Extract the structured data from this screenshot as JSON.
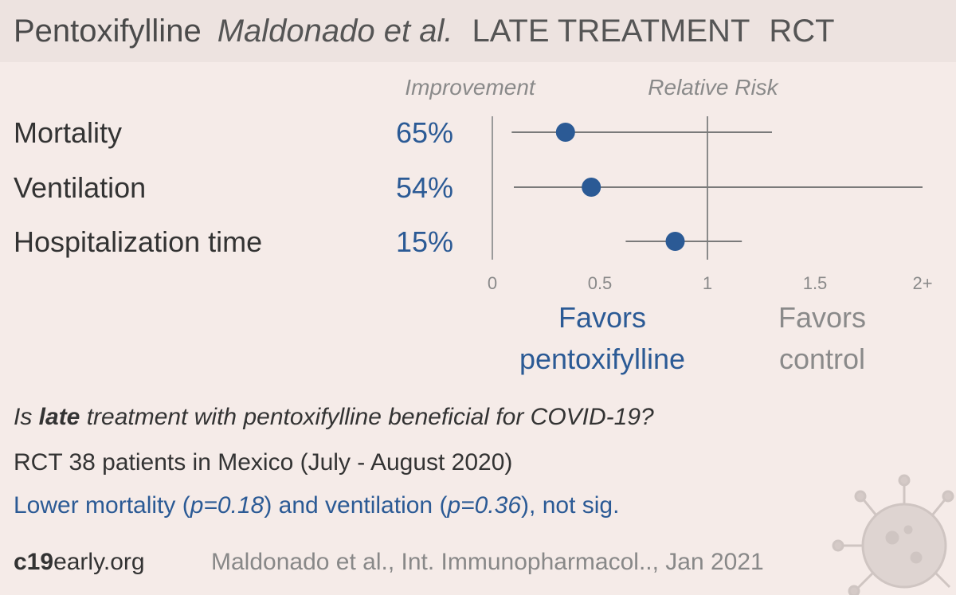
{
  "header": {
    "drug": "Pentoxifylline",
    "author": "Maldonado et al.",
    "stage": "LATE TREATMENT",
    "design": "RCT"
  },
  "columns": {
    "improvement": "Improvement",
    "relative_risk": "Relative Risk"
  },
  "chart_data": {
    "type": "forest",
    "outcomes": [
      {
        "name": "Mortality",
        "improvement": "65%",
        "rr": 0.34,
        "ci_low": 0.09,
        "ci_high": 1.3
      },
      {
        "name": "Ventilation",
        "improvement": "54%",
        "rr": 0.46,
        "ci_low": 0.1,
        "ci_high": 2.1
      },
      {
        "name": "Hospitalization time",
        "improvement": "15%",
        "rr": 0.85,
        "ci_low": 0.62,
        "ci_high": 1.16
      }
    ],
    "xlim": [
      0,
      2
    ],
    "reference_line": 1,
    "ticks": [
      {
        "value": 0,
        "label": "0"
      },
      {
        "value": 0.5,
        "label": "0.5"
      },
      {
        "value": 1,
        "label": "1"
      },
      {
        "value": 1.5,
        "label": "1.5"
      },
      {
        "value": 2,
        "label": "2+"
      }
    ],
    "favors_left": [
      "Favors",
      "pentoxifylline"
    ],
    "favors_right": [
      "Favors",
      "control"
    ],
    "colors": {
      "point": "#2b5a95",
      "improvement": "#2b5a95",
      "ci": "#7a7a7a",
      "axis": "#9a9a9a"
    }
  },
  "text": {
    "question_prefix": "Is ",
    "question_bold": "late",
    "question_suffix": " treatment with pentoxifylline beneficial for COVID-19?",
    "design_line": "RCT 38 patients in Mexico (July - August 2020)",
    "summary": {
      "a": "Lower mortality (",
      "p1": "p=0.18",
      "b": ") and ventilation (",
      "p2": "p=0.36",
      "c": "), not sig."
    }
  },
  "footer": {
    "brand_bold": "c19",
    "brand_rest": "early.org",
    "citation": "Maldonado et al., Int. Immunopharmacol.., Jan 2021"
  }
}
